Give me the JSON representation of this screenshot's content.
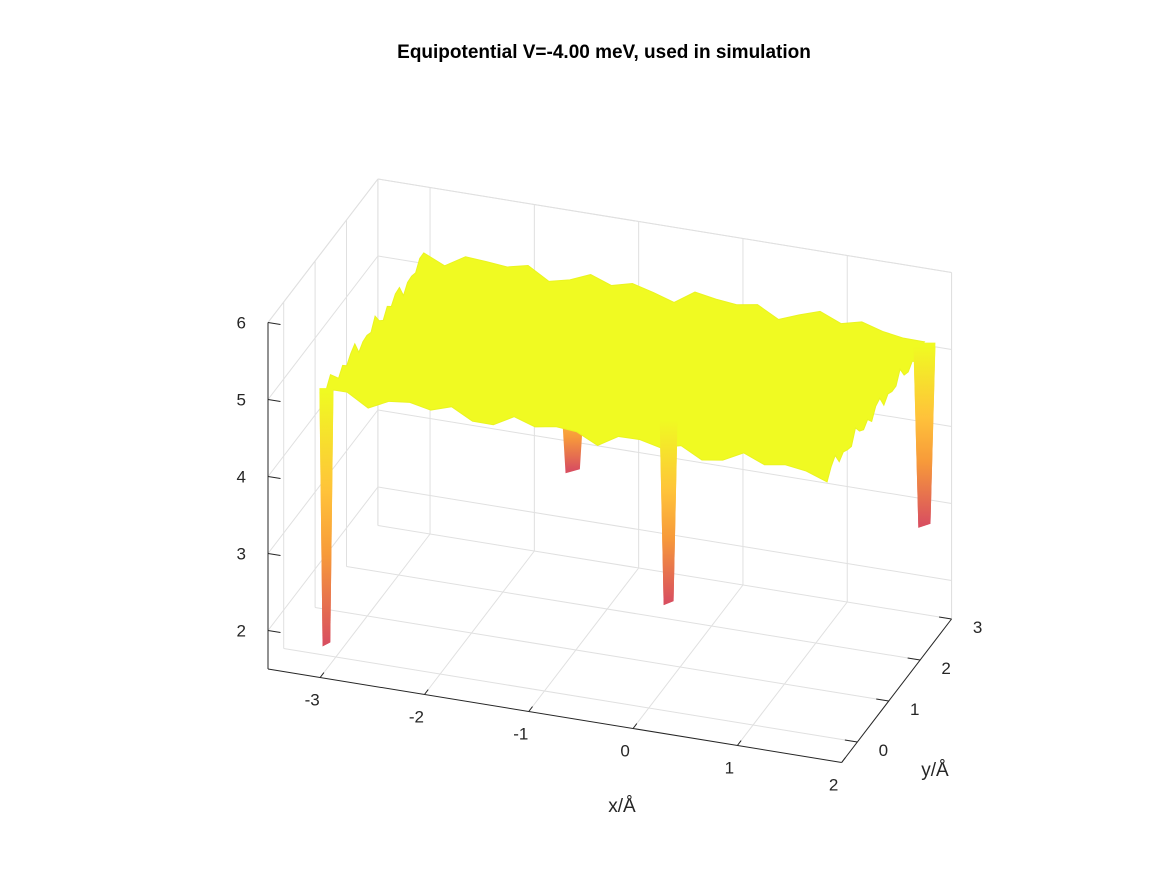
{
  "chart_data": {
    "type": "surface3d",
    "title": "Equipotential V=-4.00 meV, used in simulation",
    "xlabel": "x/Å",
    "ylabel": "y/Å",
    "zlabel": "",
    "xlim": [
      -3.5,
      2
    ],
    "ylim": [
      -0.5,
      3
    ],
    "zlim": [
      1.5,
      6
    ],
    "x_ticks": [
      -3,
      -2,
      -1,
      0,
      1,
      2
    ],
    "y_ticks": [
      0,
      1,
      2,
      3
    ],
    "z_ticks": [
      2,
      3,
      4,
      5,
      6
    ],
    "grid": true,
    "colormap": [
      "#d9505f",
      "#f79a3a",
      "#ffc23a",
      "#f0fa22"
    ],
    "surface_level": 5.1,
    "spikes": [
      {
        "x": -3.0,
        "y": -0.3,
        "z_min": 1.85
      },
      {
        "x": 0.1,
        "y": 0.3,
        "z_min": 2.75
      },
      {
        "x": 1.8,
        "y": 2.8,
        "z_min": 2.8
      },
      {
        "x": -1.0,
        "y": 0.9,
        "z_min": 3.9
      }
    ]
  }
}
